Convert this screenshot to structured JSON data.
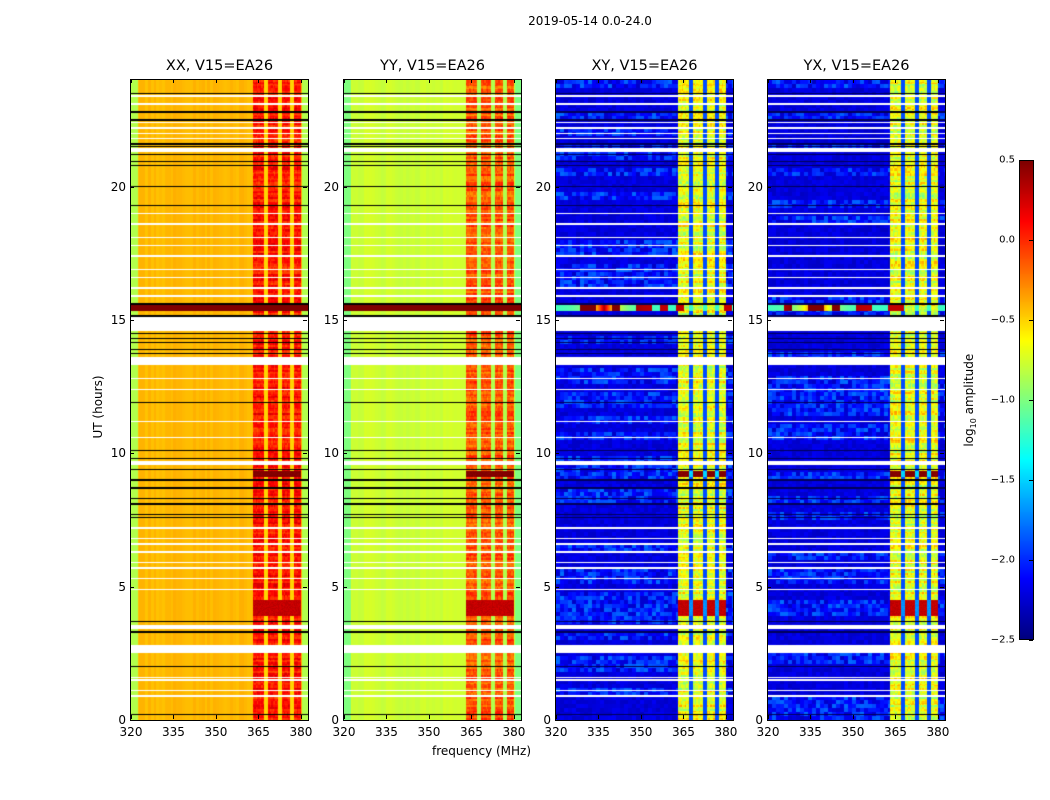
{
  "figure": {
    "suptitle": "2019-05-14 0.0-24.0",
    "ylabel": "UT (hours)",
    "xlabel": "frequency (MHz)",
    "colorbar_label_prefix": "log",
    "colorbar_label_sub": "10",
    "colorbar_label_suffix": " amplitude"
  },
  "chart_data": {
    "type": "heatmap",
    "title": "2019-05-14 0.0-24.0",
    "xlabel": "frequency (MHz)",
    "ylabel": "UT (hours)",
    "xlim": [
      320,
      382.5
    ],
    "ylim": [
      0,
      24
    ],
    "xticks": [
      320,
      335,
      350,
      365,
      380
    ],
    "xtick_labels": [
      "320",
      "335",
      "350",
      "365",
      "380"
    ],
    "yticks": [
      0,
      5,
      10,
      15,
      20
    ],
    "ytick_labels": [
      "0",
      "5",
      "10",
      "15",
      "20"
    ],
    "colorbar": {
      "label": "log10 amplitude",
      "range": [
        -2.5,
        0.5
      ],
      "ticks": [
        0.5,
        0.0,
        -0.5,
        -1.0,
        -1.5,
        -2.0,
        -2.5
      ],
      "tick_labels": [
        "0.5",
        "0.0",
        "−0.5",
        "−1.0",
        "−1.5",
        "−2.0",
        "−2.5"
      ],
      "colormap": "jet",
      "placement": "right"
    },
    "rfi_band_mhz": [
      363,
      380
    ],
    "rfi_subband_gaps_mhz": [
      367.5,
      372.5,
      377.0
    ],
    "panels": [
      {
        "name": "XX",
        "title": "XX, V15=EA26",
        "baseline_level": -0.45,
        "edge_level": -0.85,
        "rfi_level": -0.05,
        "kind": "parallel"
      },
      {
        "name": "YY",
        "title": "YY, V15=EA26",
        "baseline_level": -0.8,
        "edge_level": -1.0,
        "rfi_level": -0.25,
        "kind": "parallel"
      },
      {
        "name": "XY",
        "title": "XY, V15=EA26",
        "baseline_level": -2.3,
        "edge_level": -2.4,
        "rfi_level": -0.9,
        "kind": "cross"
      },
      {
        "name": "YX",
        "title": "YX, V15=EA26",
        "baseline_level": -2.3,
        "edge_level": -2.4,
        "rfi_level": -0.9,
        "kind": "cross"
      }
    ],
    "flagged_gaps_hours": [
      [
        2.5,
        2.8
      ],
      [
        3.4,
        3.55
      ],
      [
        13.3,
        13.6
      ],
      [
        14.6,
        15.1
      ],
      [
        9.55,
        9.7
      ],
      [
        23.05,
        23.15
      ],
      [
        21.3,
        21.45
      ]
    ],
    "strong_events_hours": [
      {
        "start": 15.35,
        "end": 15.55,
        "level": 0.5,
        "note": "broadband burst with peak near 337 MHz"
      },
      {
        "start": 9.1,
        "end": 9.35,
        "level": 0.45,
        "note": "strong RFI in 363-380 MHz band"
      },
      {
        "start": 3.9,
        "end": 4.5,
        "level": 0.25,
        "note": "enhanced RFI in 363-380 MHz band"
      }
    ],
    "black_rows_hours": [
      0.2,
      2.0,
      3.3,
      3.7,
      7.6,
      7.7,
      8.1,
      8.3,
      8.7,
      9.0,
      9.4,
      9.8,
      10.1,
      11.9,
      13.75,
      13.9,
      14.15,
      14.3,
      14.5,
      15.15,
      15.6,
      19.3,
      20.0,
      20.8,
      20.95,
      21.2,
      21.5,
      21.6,
      22.5,
      22.8,
      23.5
    ],
    "white_rows_hours": [
      0.9,
      1.1,
      1.5,
      1.6,
      4.9,
      5.3,
      5.7,
      5.9,
      6.3,
      6.6,
      6.8,
      7.2,
      10.6,
      11.2,
      12.4,
      12.8,
      15.9,
      16.2,
      16.6,
      16.9,
      17.4,
      17.8,
      18.1,
      18.6,
      19.0,
      21.8,
      22.0,
      22.2,
      22.4,
      23.4
    ]
  }
}
